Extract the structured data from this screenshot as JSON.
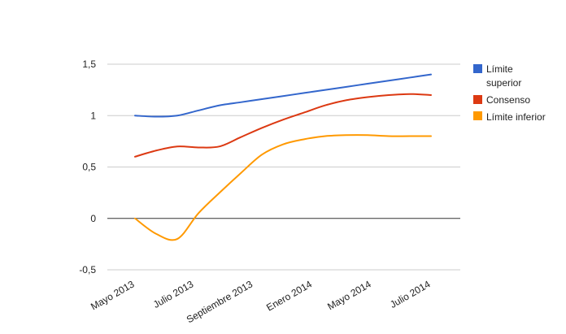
{
  "chart_data": {
    "type": "line",
    "title": "",
    "xlabel": "",
    "ylabel": "",
    "categories": [
      "Mayo 2013",
      "Julio 2013",
      "Septiembre 2013",
      "Enero 2014",
      "Mayo 2014",
      "Julio 2014"
    ],
    "x": [
      "2013-05",
      "2013-06",
      "2013-07",
      "2013-08",
      "2013-09",
      "2013-10",
      "2013-11",
      "2013-12",
      "2014-01",
      "2014-02",
      "2014-03",
      "2014-04",
      "2014-05",
      "2014-06",
      "2014-07"
    ],
    "y_ticks": [
      "1,5",
      "1",
      "0,5",
      "0",
      "-0,5"
    ],
    "ylim": [
      -0.5,
      1.5
    ],
    "grid": true,
    "legend_position": "right",
    "series": [
      {
        "name": "Límite superior",
        "color": "#3366cc",
        "values": [
          1.0,
          0.99,
          1.0,
          1.05,
          1.1,
          1.13,
          1.16,
          1.19,
          1.22,
          1.25,
          1.28,
          1.31,
          1.34,
          1.37,
          1.4
        ]
      },
      {
        "name": "Consenso",
        "color": "#dc3912",
        "values": [
          0.6,
          0.66,
          0.7,
          0.69,
          0.7,
          0.79,
          0.88,
          0.96,
          1.03,
          1.1,
          1.15,
          1.18,
          1.2,
          1.21,
          1.2
        ]
      },
      {
        "name": "Límite inferior",
        "color": "#ff9900",
        "values": [
          0.0,
          -0.15,
          -0.2,
          0.05,
          0.25,
          0.44,
          0.62,
          0.72,
          0.77,
          0.8,
          0.81,
          0.81,
          0.8,
          0.8,
          0.8
        ]
      }
    ],
    "legend": [
      "Límite",
      "superior",
      "Consenso",
      "Límite inferior"
    ]
  }
}
